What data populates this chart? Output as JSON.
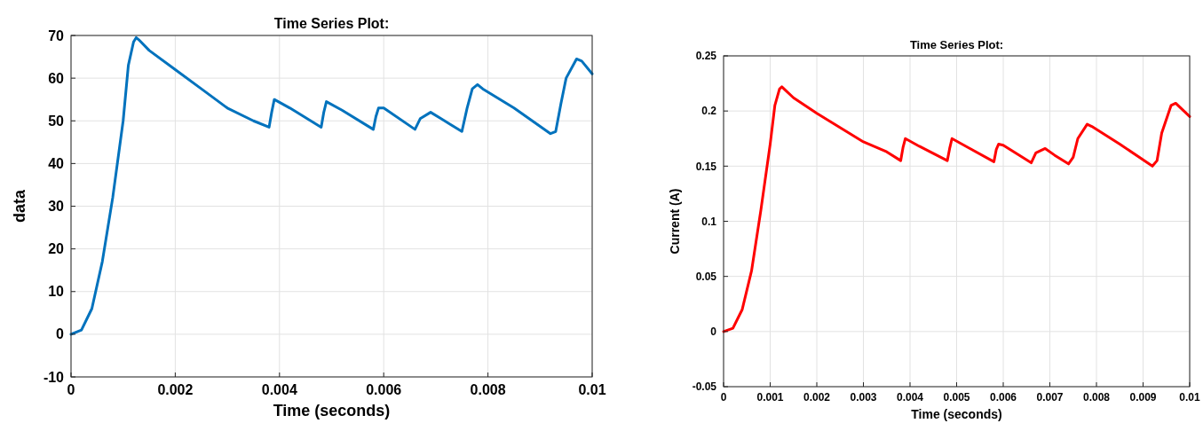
{
  "chart_data": [
    {
      "type": "line",
      "title": "Time Series Plot:",
      "xlabel": "Time (seconds)",
      "ylabel": "data",
      "xlim": [
        0,
        0.01
      ],
      "xticks": [
        0,
        0.002,
        0.004,
        0.006,
        0.008,
        0.01
      ],
      "ylim": [
        -10,
        70
      ],
      "yticks": [
        -10,
        0,
        10,
        20,
        30,
        40,
        50,
        60,
        70
      ],
      "grid": true,
      "series": [
        {
          "color": "#0072bd",
          "x": [
            0,
            0.0002,
            0.0004,
            0.0006,
            0.0008,
            0.001,
            0.0011,
            0.0012,
            0.00125,
            0.0013,
            0.0015,
            0.002,
            0.0025,
            0.003,
            0.0035,
            0.0038,
            0.00385,
            0.0039,
            0.0042,
            0.0048,
            0.00485,
            0.0049,
            0.0052,
            0.0058,
            0.00585,
            0.0059,
            0.006,
            0.0066,
            0.0067,
            0.0069,
            0.0071,
            0.0075,
            0.0076,
            0.0077,
            0.0078,
            0.0079,
            0.0085,
            0.0092,
            0.0093,
            0.0094,
            0.0095,
            0.0097,
            0.0098,
            0.01
          ],
          "values": [
            0,
            1,
            6,
            17,
            32,
            50,
            63,
            68.5,
            69.5,
            69,
            66.5,
            62,
            57.5,
            53,
            50,
            48.5,
            52,
            55,
            53,
            48.5,
            52,
            54.5,
            52.5,
            48,
            51,
            53,
            53,
            48,
            50.5,
            52,
            50.5,
            47.5,
            53,
            57.5,
            58.5,
            57.5,
            53,
            47,
            47.5,
            54,
            60,
            64.5,
            64,
            61
          ]
        }
      ]
    },
    {
      "type": "line",
      "title": "Time Series Plot:",
      "xlabel": "Time (seconds)",
      "ylabel": "Current (A)",
      "xlim": [
        0,
        0.01
      ],
      "xticks": [
        0,
        0.001,
        0.002,
        0.003,
        0.004,
        0.005,
        0.006,
        0.007,
        0.008,
        0.009,
        0.01
      ],
      "ylim": [
        -0.05,
        0.25
      ],
      "yticks": [
        -0.05,
        0,
        0.05,
        0.1,
        0.15,
        0.2,
        0.25
      ],
      "grid": true,
      "series": [
        {
          "color": "#ff0000",
          "x": [
            0,
            0.0002,
            0.0004,
            0.0006,
            0.0008,
            0.001,
            0.0011,
            0.0012,
            0.00125,
            0.0013,
            0.0015,
            0.002,
            0.003,
            0.0035,
            0.0038,
            0.00385,
            0.0039,
            0.0042,
            0.0048,
            0.00485,
            0.0049,
            0.0052,
            0.0058,
            0.00585,
            0.0059,
            0.006,
            0.0066,
            0.0067,
            0.0069,
            0.0071,
            0.0074,
            0.0075,
            0.0076,
            0.0078,
            0.0079,
            0.0085,
            0.0092,
            0.0093,
            0.0094,
            0.0096,
            0.0097,
            0.0098,
            0.01
          ],
          "values": [
            0,
            0.003,
            0.02,
            0.055,
            0.11,
            0.17,
            0.205,
            0.22,
            0.222,
            0.22,
            0.212,
            0.198,
            0.172,
            0.163,
            0.155,
            0.167,
            0.175,
            0.168,
            0.155,
            0.166,
            0.175,
            0.168,
            0.154,
            0.165,
            0.17,
            0.169,
            0.153,
            0.162,
            0.166,
            0.16,
            0.152,
            0.158,
            0.175,
            0.188,
            0.186,
            0.17,
            0.15,
            0.155,
            0.18,
            0.205,
            0.207,
            0.203,
            0.195
          ]
        }
      ]
    }
  ]
}
